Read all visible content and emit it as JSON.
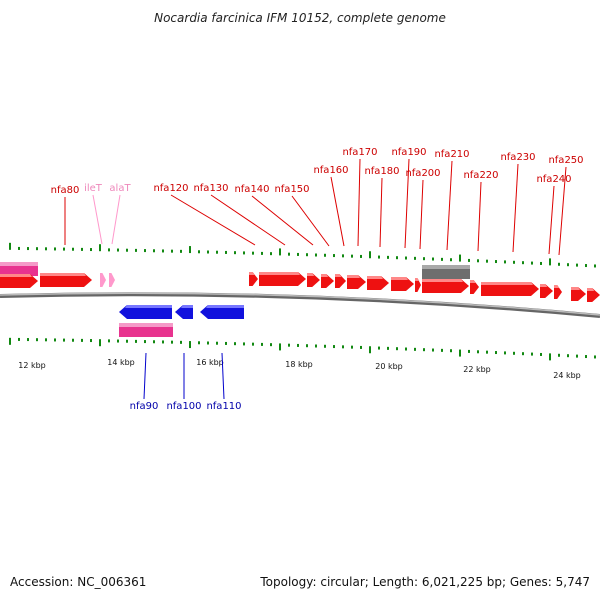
{
  "title": "Nocardia farcinica IFM 10152, complete genome",
  "footer": {
    "accession": "Accession: NC_006361",
    "topology": "Topology: circular; Length: 6,021,225 bp; Genes: 5,747"
  },
  "colors": {
    "forward_gene": "#ee1111",
    "reverse_gene": "#1111dd",
    "rna": "#ee3399",
    "trna": "#ff99cc",
    "misc": "#777777",
    "tick": "#118811",
    "backbone": "#888888",
    "label_forward": "#cc0000",
    "label_reverse": "#0000aa",
    "label_trna": "#ee88bb"
  },
  "scale": {
    "unit": "kbp",
    "ticks": [
      {
        "kbp": 12,
        "label": "12 kbp"
      },
      {
        "kbp": 14,
        "label": "14 kbp"
      },
      {
        "kbp": 16,
        "label": "16 kbp"
      },
      {
        "kbp": 18,
        "label": "18 kbp"
      },
      {
        "kbp": 20,
        "label": "20 kbp"
      },
      {
        "kbp": 22,
        "label": "22 kbp"
      },
      {
        "kbp": 24,
        "label": "24 kbp"
      }
    ]
  },
  "gene_labels_forward": [
    {
      "name": "nfa80",
      "type": "gene"
    },
    {
      "name": "ileT",
      "type": "trna"
    },
    {
      "name": "alaT",
      "type": "trna"
    },
    {
      "name": "nfa120",
      "type": "gene"
    },
    {
      "name": "nfa130",
      "type": "gene"
    },
    {
      "name": "nfa140",
      "type": "gene"
    },
    {
      "name": "nfa150",
      "type": "gene"
    },
    {
      "name": "nfa160",
      "type": "gene"
    },
    {
      "name": "nfa170",
      "type": "gene"
    },
    {
      "name": "nfa180",
      "type": "gene"
    },
    {
      "name": "nfa190",
      "type": "gene"
    },
    {
      "name": "nfa200",
      "type": "gene"
    },
    {
      "name": "nfa210",
      "type": "gene"
    },
    {
      "name": "nfa220",
      "type": "gene"
    },
    {
      "name": "nfa230",
      "type": "gene"
    },
    {
      "name": "nfa240",
      "type": "gene"
    },
    {
      "name": "nfa250",
      "type": "gene"
    }
  ],
  "gene_labels_reverse": [
    {
      "name": "nfa90",
      "type": "gene"
    },
    {
      "name": "nfa100",
      "type": "gene"
    },
    {
      "name": "nfa110",
      "type": "gene"
    }
  ]
}
